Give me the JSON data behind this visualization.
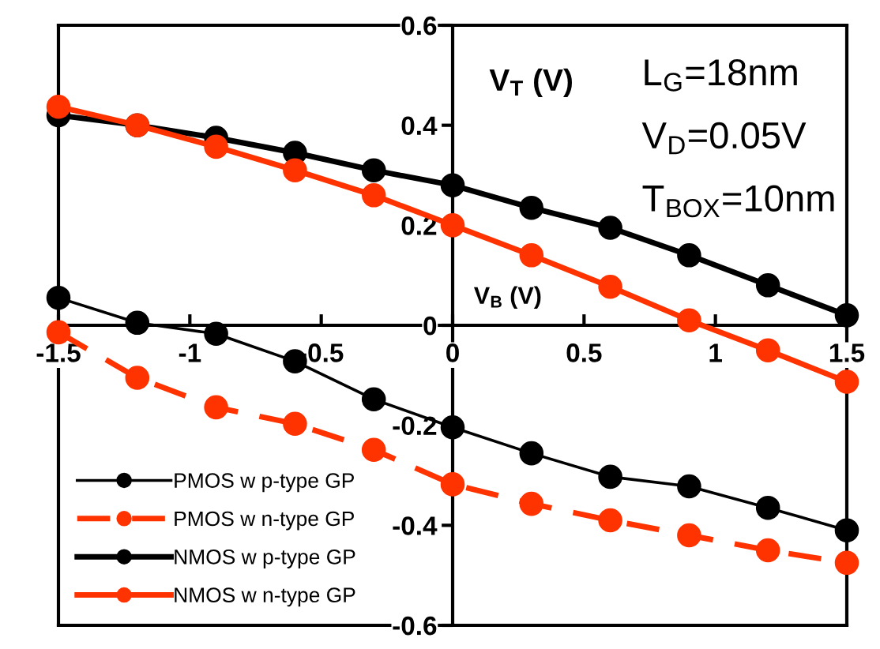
{
  "chart_data": {
    "type": "line",
    "xlabel": "V$_{B}$ (V)",
    "ylabel": "V$_{T}$ (V)",
    "annotations": [
      "L$_{G}$=18nm",
      "V$_{D}$=0.05V",
      "T$_{BOX}$=10nm"
    ],
    "x": [
      -1.5,
      -1.2,
      -0.9,
      -0.6,
      -0.3,
      0,
      0.3,
      0.6,
      0.9,
      1.2,
      1.5
    ],
    "series": [
      {
        "name": "PMOS w p-type GP",
        "color": "#000000",
        "line_style": "solid",
        "values": [
          0.055,
          0.005,
          -0.017,
          -0.072,
          -0.148,
          -0.204,
          -0.256,
          -0.303,
          -0.322,
          -0.365,
          -0.41
        ]
      },
      {
        "name": "PMOS w n-type GP",
        "color": "#ff3300",
        "line_style": "dashed",
        "values": [
          -0.014,
          -0.105,
          -0.164,
          -0.197,
          -0.249,
          -0.318,
          -0.357,
          -0.39,
          -0.42,
          -0.45,
          -0.475
        ]
      },
      {
        "name": "NMOS w p-type GP",
        "color": "#000000",
        "line_style": "solid",
        "values": [
          0.42,
          0.4,
          0.375,
          0.345,
          0.31,
          0.28,
          0.235,
          0.195,
          0.14,
          0.08,
          0.02
        ]
      },
      {
        "name": "NMOS w n-type GP",
        "color": "#ff3300",
        "line_style": "solid",
        "values": [
          0.437,
          0.4,
          0.357,
          0.31,
          0.26,
          0.2,
          0.14,
          0.077,
          0.01,
          -0.05,
          -0.113
        ]
      }
    ],
    "xlim": [
      -1.5,
      1.5
    ],
    "ylim": [
      -0.6,
      0.6
    ],
    "xticks": [
      -1.5,
      -1,
      -0.5,
      0,
      0.5,
      1,
      1.5
    ],
    "yticks": [
      -0.6,
      -0.4,
      -0.2,
      0,
      0.2,
      0.4,
      0.6
    ],
    "marker": "circle",
    "grid": false,
    "legend": "bottom left"
  }
}
